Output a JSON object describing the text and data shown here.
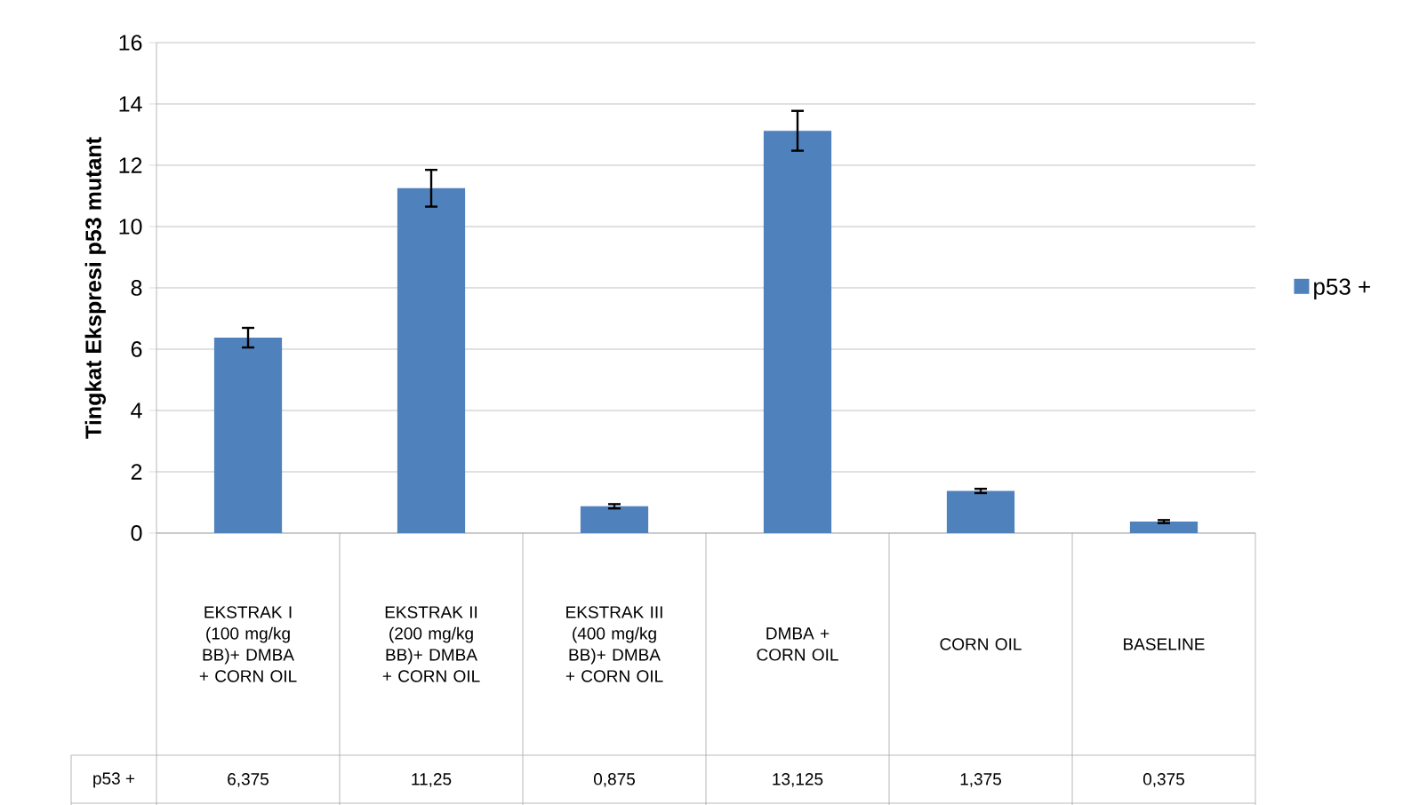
{
  "chart_data": {
    "type": "bar",
    "ylabel": "Tingkat Ekspresi p53 mutant",
    "categories": [
      "EKSTRAK I (100 mg/kg BB)+ DMBA + CORN OIL",
      "EKSTRAK II (200 mg/kg BB)+ DMBA + CORN OIL",
      "EKSTRAK III (400 mg/kg BB)+ DMBA + CORN OIL",
      "DMBA + CORN OIL",
      "CORN OIL",
      "BASELINE"
    ],
    "series": [
      {
        "name": "p53 +",
        "color": "#4f81bd",
        "values": [
          6.375,
          11.25,
          0.875,
          13.125,
          1.375,
          0.375
        ],
        "errors": [
          0.32,
          0.6,
          0.07,
          0.65,
          0.07,
          0.05
        ],
        "value_labels": [
          "6,375",
          "11,25",
          "0,875",
          "13,125",
          "1,375",
          "0,375"
        ]
      }
    ],
    "ylim": [
      0,
      16
    ],
    "yticks": [
      0,
      2,
      4,
      6,
      8,
      10,
      12,
      14,
      16
    ],
    "grid": "y",
    "legend": "right"
  }
}
